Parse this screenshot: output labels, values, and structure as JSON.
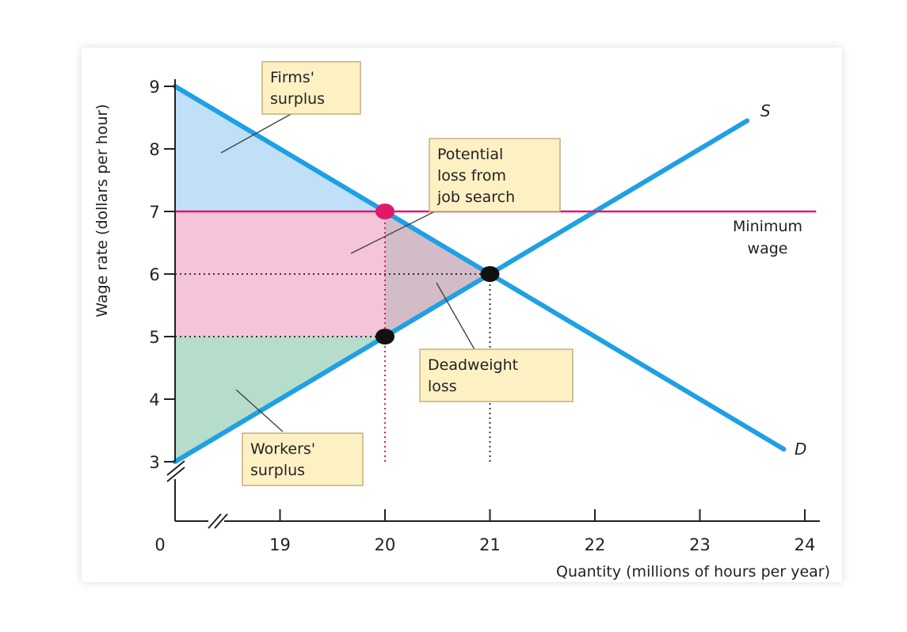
{
  "chart_data": {
    "type": "line",
    "xlabel": "Quantity (millions of hours per year)",
    "ylabel": "Wage rate (dollars per hour)",
    "x_ticks": [
      {
        "value": 19,
        "label": "19",
        "highlight": false
      },
      {
        "value": 20,
        "label": "20",
        "highlight": true
      },
      {
        "value": 21,
        "label": "21",
        "highlight": false
      },
      {
        "value": 22,
        "label": "22",
        "highlight": false
      },
      {
        "value": 23,
        "label": "23",
        "highlight": false
      },
      {
        "value": 24,
        "label": "24",
        "highlight": false
      }
    ],
    "y_ticks": [
      {
        "value": 3,
        "label": "3",
        "highlight": false
      },
      {
        "value": 4,
        "label": "4",
        "highlight": false
      },
      {
        "value": 5,
        "label": "5",
        "highlight": false
      },
      {
        "value": 6,
        "label": "6",
        "highlight": false
      },
      {
        "value": 7,
        "label": "7",
        "highlight": true
      },
      {
        "value": 8,
        "label": "8",
        "highlight": false
      },
      {
        "value": 9,
        "label": "9",
        "highlight": false
      }
    ],
    "origin_label": "0",
    "xlim": [
      18,
      24
    ],
    "ylim": [
      3,
      9
    ],
    "axis_breaks": true,
    "grid": false,
    "series": [
      {
        "name": "D",
        "points": [
          [
            18,
            9
          ],
          [
            23.8,
            3.2
          ]
        ]
      },
      {
        "name": "S",
        "points": [
          [
            18,
            3
          ],
          [
            23.45,
            8.45
          ]
        ]
      },
      {
        "name": "Minimum wage",
        "points": [
          [
            18,
            7
          ],
          [
            24.1,
            7
          ]
        ]
      }
    ],
    "points": [
      {
        "x": 20,
        "y": 7,
        "color": "#e0186c"
      },
      {
        "x": 21,
        "y": 6,
        "color": "#111111"
      },
      {
        "x": 20,
        "y": 5,
        "color": "#111111"
      }
    ],
    "reference_lines": [
      {
        "from": [
          18,
          6
        ],
        "to": [
          21,
          6
        ],
        "color": "#333333"
      },
      {
        "from": [
          18,
          5
        ],
        "to": [
          20,
          5
        ],
        "color": "#333333"
      },
      {
        "from": [
          21,
          3
        ],
        "to": [
          21,
          6
        ],
        "color": "#333333"
      },
      {
        "from": [
          20,
          3
        ],
        "to": [
          20,
          7
        ],
        "color": "#e0186c"
      }
    ],
    "regions": [
      {
        "name": "Firms' surplus",
        "polygon": [
          [
            18,
            9
          ],
          [
            18,
            7
          ],
          [
            20,
            7
          ]
        ],
        "color": "#bfe0f7"
      },
      {
        "name": "Potential loss from job search",
        "polygon": [
          [
            18,
            7
          ],
          [
            20,
            7
          ],
          [
            20,
            5
          ],
          [
            18,
            5
          ]
        ],
        "color": "#f5c4d8"
      },
      {
        "name": "Deadweight loss",
        "polygon": [
          [
            20,
            7
          ],
          [
            21,
            6
          ],
          [
            20,
            5
          ]
        ],
        "color": "#d2bcc8"
      },
      {
        "name": "Workers' surplus",
        "polygon": [
          [
            18,
            5
          ],
          [
            20,
            5
          ],
          [
            18,
            3
          ]
        ],
        "color": "#b6dccb"
      }
    ],
    "annotations": [
      {
        "lines": [
          "Firms'",
          "surplus"
        ]
      },
      {
        "lines": [
          "Potential",
          "loss from",
          "job search"
        ]
      },
      {
        "lines": [
          "Deadweight",
          "loss"
        ]
      },
      {
        "lines": [
          "Workers'",
          "surplus"
        ]
      }
    ],
    "curve_labels": {
      "demand": "D",
      "supply": "S",
      "minimum_wage": [
        "Minimum",
        "wage"
      ]
    },
    "colors": {
      "curve": "#1fa0e4",
      "minimum_wage": "#e0186c",
      "axis": "#222222",
      "callout_fill": "#fdf1c4",
      "callout_border": "#c3b07a"
    }
  }
}
